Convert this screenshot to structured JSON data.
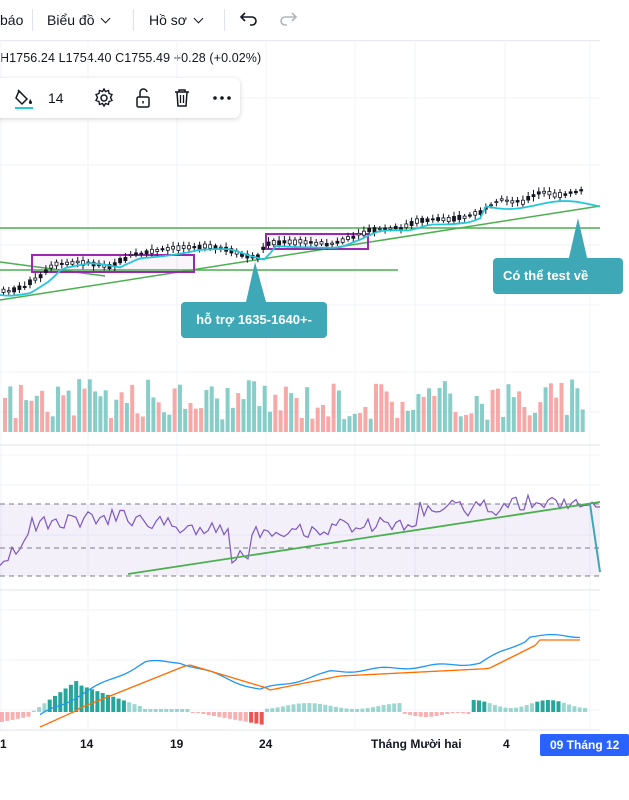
{
  "toolbar": {
    "left_fragment": "báo",
    "chart_menu_label": "Biểu đồ",
    "profile_menu_label": "Hồ sơ",
    "undo_icon": "undo-icon",
    "redo_icon": "redo-icon"
  },
  "ohlc": {
    "high": "H1756.24",
    "low": "L1754.40",
    "close": "C1755.49",
    "change": "+0.28 (+0.02%)"
  },
  "drawing_toolbar": {
    "fill_icon": "paint-bucket-icon",
    "line_width": "14",
    "settings_icon": "gear-icon",
    "lock_icon": "unlock-icon",
    "delete_icon": "trash-icon",
    "more_icon": "more-icon"
  },
  "callouts": {
    "support": "hỗ trợ 1635-1640+-",
    "retest": "Có thể test về"
  },
  "x_axis": {
    "labels": [
      "1",
      "14",
      "19",
      "24",
      "Tháng Mười hai",
      "4"
    ],
    "current": "09 Tháng 12"
  },
  "colors": {
    "up": "#26a69a",
    "down": "#ef5350",
    "trendline": "#4caf50",
    "rectangle": "#9c27b0",
    "ma_line": "#26c6da",
    "rsi_line": "#7e57c2",
    "macd_line": "#2196f3",
    "signal_line": "#ff6d00",
    "callout_bg": "#3fa8b6",
    "date_badge": "#2962ff"
  }
}
